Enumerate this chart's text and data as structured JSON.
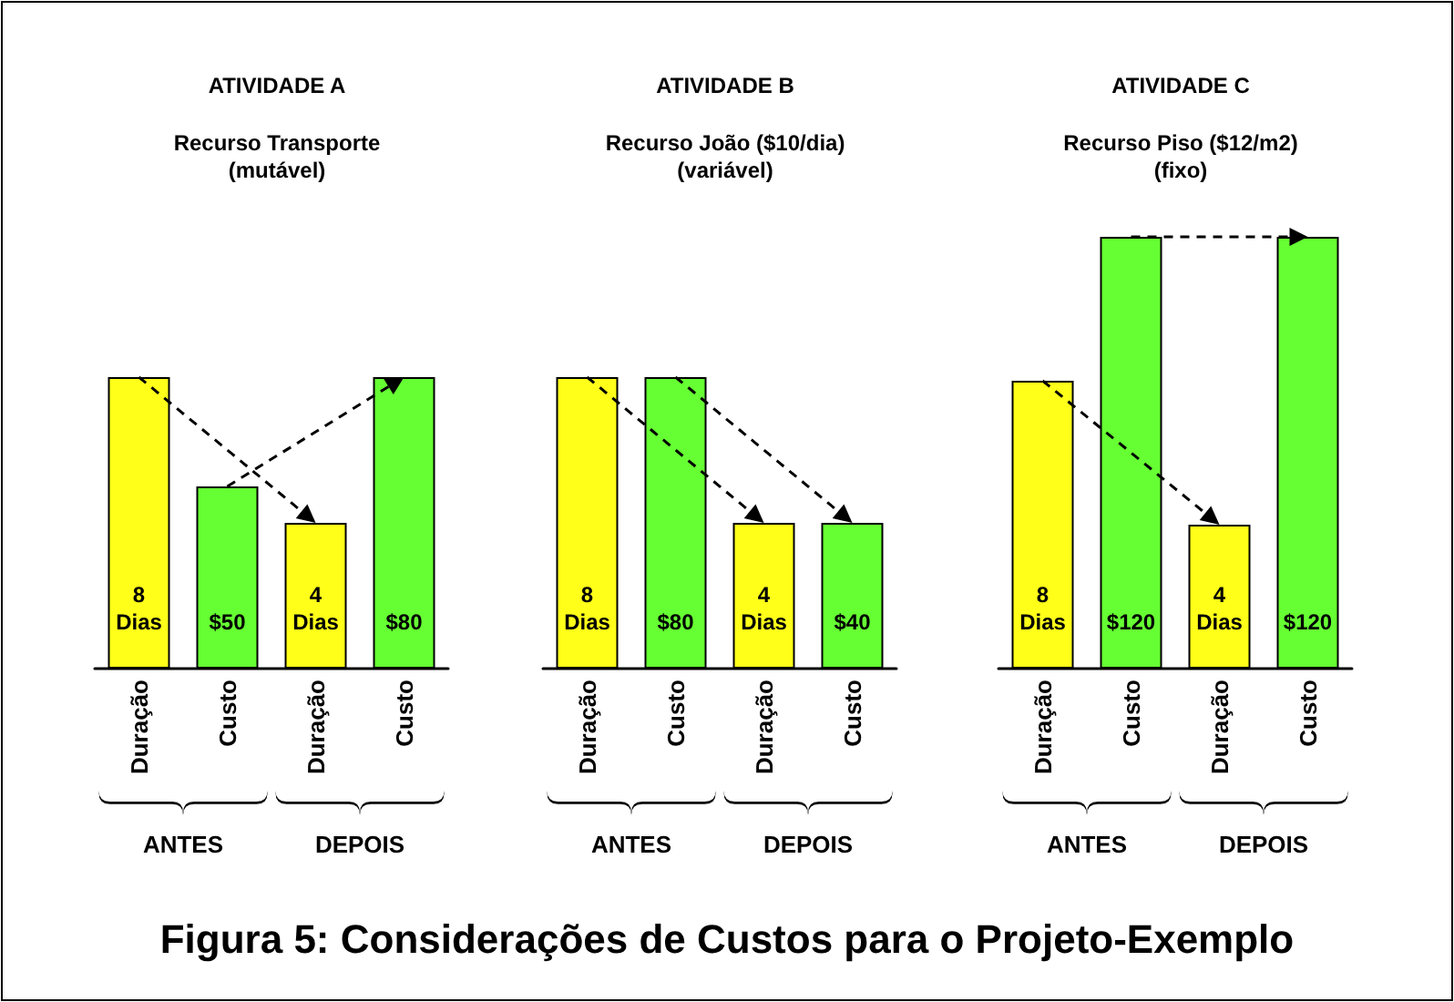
{
  "chart_data": [
    {
      "type": "bar",
      "title": "ATIVIDADE A",
      "subtitle": "Recurso Transporte\n(mutável)",
      "categories": [
        "Duração",
        "Custo",
        "Duração",
        "Custo"
      ],
      "tick_labels": false,
      "series": [
        {
          "color": "#ffff1a",
          "axis": "y2",
          "values": [
            8,
            null,
            4,
            null
          ],
          "value_labels": [
            "8\nDias",
            null,
            "4\nDias",
            null
          ]
        },
        {
          "color": "#66ff33",
          "values": [
            null,
            50,
            null,
            80
          ],
          "value_labels": [
            null,
            "$50",
            null,
            "$80"
          ]
        }
      ],
      "annotations": [
        "ANTES",
        "DEPOIS"
      ]
    },
    {
      "type": "bar",
      "title": "ATIVIDADE B",
      "subtitle": "Recurso João ($10/dia)\n(variável)",
      "categories": [
        "Duração",
        "Custo",
        "Duração",
        "Custo"
      ],
      "tick_labels": false,
      "series": [
        {
          "color": "#ffff1a",
          "axis": "y2",
          "values": [
            8,
            null,
            4,
            null
          ],
          "value_labels": [
            "8\nDias",
            null,
            "4\nDias",
            null
          ]
        },
        {
          "color": "#66ff33",
          "values": [
            null,
            80,
            null,
            40
          ],
          "value_labels": [
            null,
            "$80",
            null,
            "$40"
          ]
        }
      ],
      "annotations": [
        "ANTES",
        "DEPOIS"
      ]
    },
    {
      "type": "bar",
      "title": "ATIVIDADE C",
      "subtitle": "Recurso Piso ($12/m2)\n(fixo)",
      "categories": [
        "Duração",
        "Custo",
        "Duração",
        "Custo"
      ],
      "ylim": [
        0,
        120
      ],
      "y2lim": [
        0,
        12
      ],
      "tick_labels": false,
      "series": [
        {
          "color": "#ffff1a",
          "axis": "y2",
          "values": [
            8,
            null,
            4,
            null
          ],
          "value_labels": [
            "8\nDias",
            null,
            "4\nDias",
            null
          ]
        },
        {
          "color": "#66ff33",
          "values": [
            null,
            120,
            null,
            120
          ],
          "value_labels": [
            null,
            "$120",
            null,
            "$120"
          ]
        }
      ],
      "annotations": [
        "ANTES",
        "DEPOIS",
        "Figura 5: Considerações de Custos para o Projeto-Exemplo"
      ]
    }
  ]
}
